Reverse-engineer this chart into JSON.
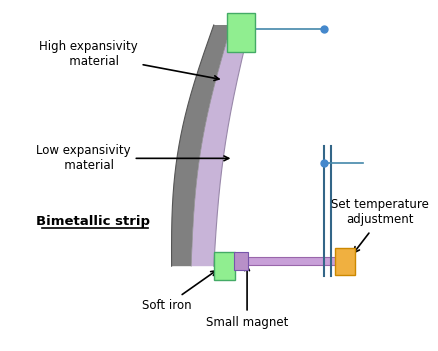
{
  "bg_color": "#ffffff",
  "bimetal_high_color": "#808080",
  "bimetal_low_color": "#c8b4d8",
  "soft_iron_color": "#90ee90",
  "magnet_rod_color": "#c8a0d8",
  "magnet_end_color": "#f0b040",
  "contact_line_color": "#4488aa",
  "annotation_color": "#000000",
  "arrow_color": "#000000",
  "dot_color": "#4488cc",
  "labels": {
    "high_exp": "High expansivity\n   material",
    "low_exp": "Low expansivity\n   material",
    "bimetallic": "Bimetallic strip",
    "soft_iron": "Soft iron",
    "small_magnet": "Small magnet",
    "set_temp": "Set temperature\nadjustment"
  }
}
